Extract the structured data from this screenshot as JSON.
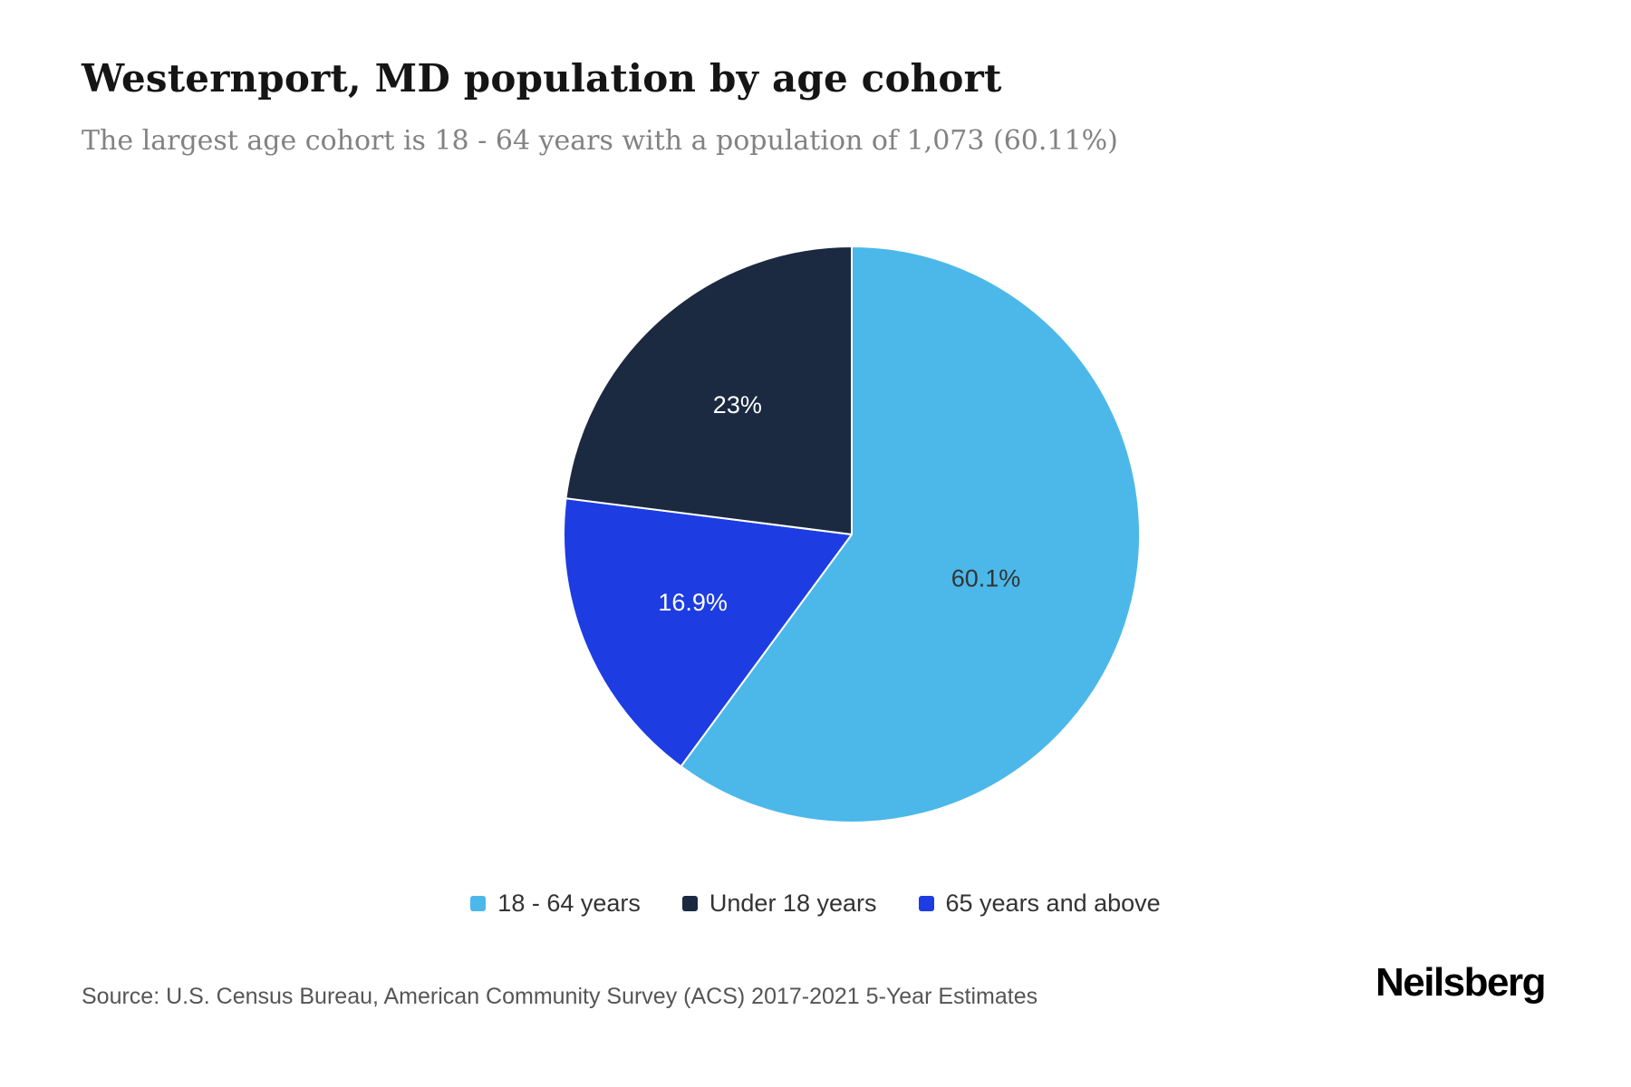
{
  "header": {
    "title": "Westernport, MD population by age cohort",
    "subtitle": "The largest age cohort is 18 - 64 years with a population of 1,073 (60.11%)"
  },
  "chart_data": {
    "type": "pie",
    "title": "Westernport, MD population by age cohort",
    "subtitle": "The largest age cohort is 18 - 64 years with a population of 1,073 (60.11%)",
    "start_angle": "top",
    "direction": "clockwise",
    "slices": [
      {
        "label": "18 - 64 years",
        "value": 60.1,
        "display": "60.1%",
        "color": "#4cb8ea"
      },
      {
        "label": "65 years and above",
        "value": 16.9,
        "display": "16.9%",
        "color": "#1d3de2"
      },
      {
        "label": "Under 18 years",
        "value": 23.0,
        "display": "23%",
        "color": "#1b2a41"
      }
    ],
    "legend_order": [
      "18 - 64 years",
      "Under 18 years",
      "65 years and above"
    ],
    "label_color_on_light": "#333333",
    "label_color_on_dark": "#ffffff"
  },
  "footer": {
    "source": "Source: U.S. Census Bureau, American Community Survey (ACS) 2017-2021 5-Year Estimates",
    "logo": "Neilsberg"
  }
}
